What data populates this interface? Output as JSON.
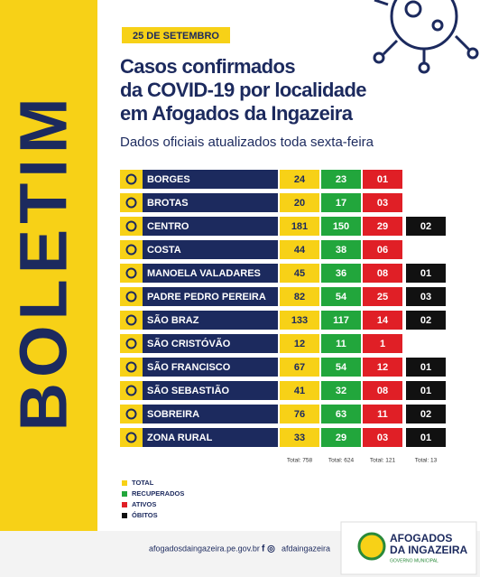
{
  "header": {
    "side_label": "BOLETIM",
    "date": "25 DE SETEMBRO",
    "title_lines": [
      "Casos confirmados",
      "da COVID-19 por localidade",
      "em Afogados da Ingazeira"
    ],
    "subtitle": "Dados oficiais atualizados toda sexta-feira"
  },
  "table": {
    "rows": [
      [
        "BORGES",
        "24",
        "23",
        "01",
        null
      ],
      [
        "BROTAS",
        "20",
        "17",
        "03",
        null
      ],
      [
        "CENTRO",
        "181",
        "150",
        "29",
        "02"
      ],
      [
        "COSTA",
        "44",
        "38",
        "06",
        null
      ],
      [
        "MANOELA VALADARES",
        "45",
        "36",
        "08",
        "01"
      ],
      [
        "PADRE PEDRO PEREIRA",
        "82",
        "54",
        "25",
        "03"
      ],
      [
        "SÃO BRAZ",
        "133",
        "117",
        "14",
        "02"
      ],
      [
        "SÃO CRISTÓVÃO",
        "12",
        "11",
        "1",
        null
      ],
      [
        "SÃO FRANCISCO",
        "67",
        "54",
        "12",
        "01"
      ],
      [
        "SÃO SEBASTIÃO",
        "41",
        "32",
        "08",
        "01"
      ],
      [
        "SOBREIRA",
        "76",
        "63",
        "11",
        "02"
      ],
      [
        "ZONA RURAL",
        "33",
        "29",
        "03",
        "01"
      ]
    ],
    "totals": [
      "Total: 758",
      "Total: 624",
      "Total: 121",
      "Total: 13"
    ]
  },
  "legend": [
    "TOTAL",
    "RECUPERADOS",
    "ATIVOS",
    "ÓBITOS"
  ],
  "footer": {
    "website": "afogadosdaingazeira.pe.gov.br",
    "social": "afdaingazeira",
    "logo_lines": [
      "AFOGADOS",
      "DA INGAZEIRA",
      "GOVERNO MUNICIPAL"
    ]
  }
}
